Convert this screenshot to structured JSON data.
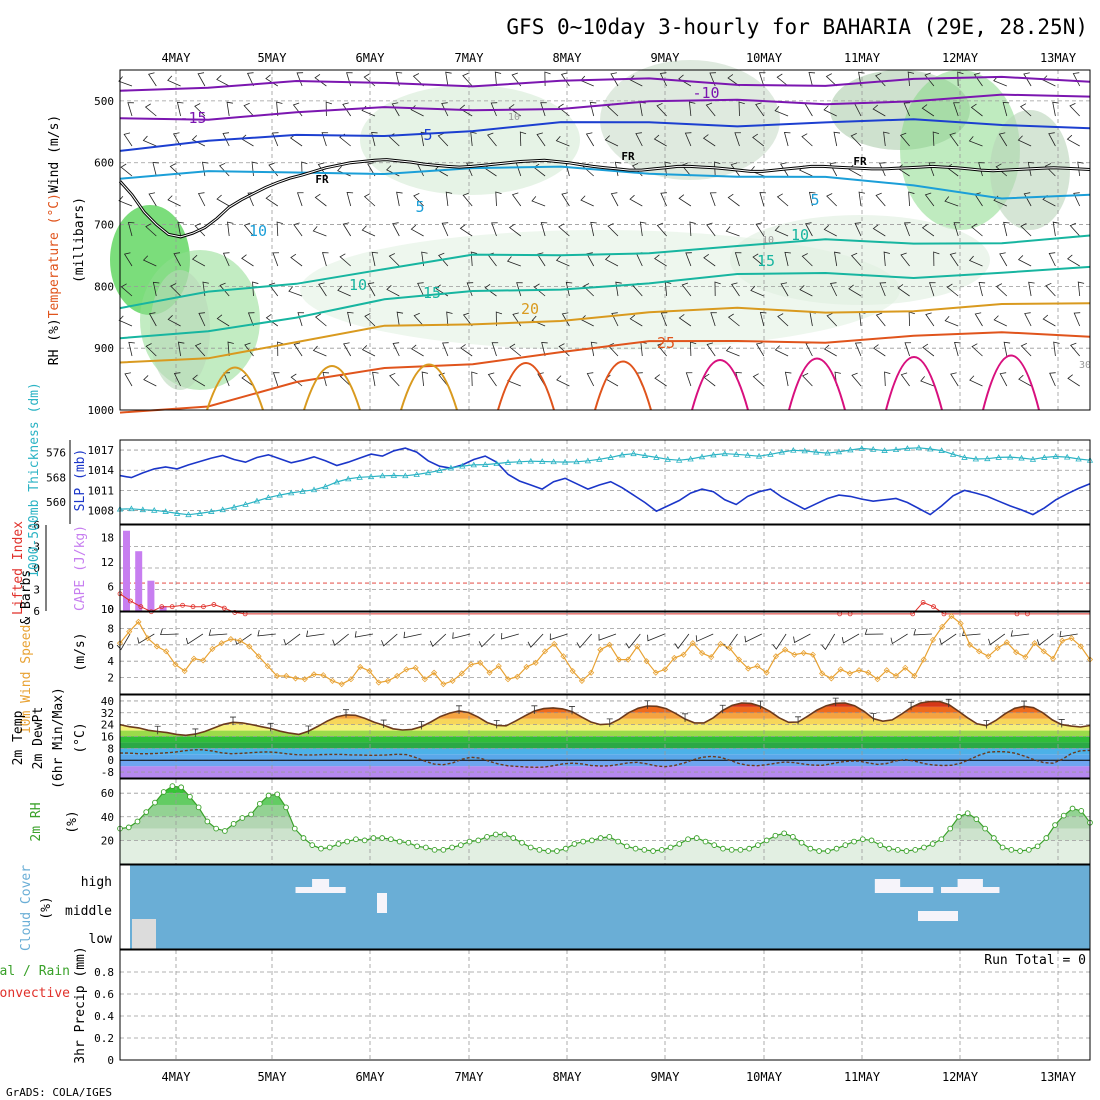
{
  "title": "GFS 0~10day 3-hourly for BAHARIA (29E, 28.25N)",
  "credit": "GrADS: COLA/IGES",
  "dates": [
    "4MAY",
    "5MAY",
    "6MAY",
    "7MAY",
    "8MAY",
    "9MAY",
    "10MAY",
    "11MAY",
    "12MAY",
    "13MAY"
  ],
  "colors": {
    "temp_cold": "#7b16b0",
    "temp_cool": "#1c3fd0",
    "temp_mild": "#1b9fd8",
    "temp_15": "#17b5a0",
    "temp_20": "#d99a1f",
    "temp_25": "#e0541c",
    "temp_hot": "#d8107e",
    "rh_fill": "#3ccf3c",
    "slp": "#1b36c9",
    "thickness": "#2bb3c4",
    "cape": "#c77ef0",
    "lifted_index": "#e0302a",
    "wind10m": "#e8a233",
    "rh2m": "#3aa12a",
    "cloud": "#6aaed6",
    "cloud_gap": "#f6f4fa"
  },
  "chart_data": [
    {
      "type": "contour-profile",
      "panel": "upper-air",
      "ylabel_parts": [
        "RH (%)",
        "Temperature (°C)",
        "Wind (m/s)"
      ],
      "ylabel_unit": "(millibars)",
      "y_ticks": [
        "500",
        "600",
        "700",
        "800",
        "900",
        "1000"
      ],
      "ylim": [
        450,
        1000
      ],
      "y_reverse": true,
      "freezing_label": "FR",
      "contour_labels": [
        "-15",
        "-10",
        "5",
        "5",
        "5",
        "10",
        "10",
        "10",
        "15",
        "15",
        "20",
        "25",
        "30",
        "10",
        "10"
      ],
      "freezing_level_mb": [
        630,
        652,
        680,
        700,
        716,
        720,
        714,
        705,
        690,
        672,
        660,
        650,
        640,
        632,
        625,
        620,
        614,
        608,
        604,
        600,
        598,
        596,
        595,
        597,
        599,
        602,
        604,
        606,
        607,
        606,
        604,
        602,
        600,
        598,
        597,
        596,
        598,
        600,
        603,
        606,
        608,
        610,
        612,
        612,
        610,
        608,
        606,
        606,
        607,
        608,
        610,
        612,
        614,
        614,
        612,
        610,
        608,
        606,
        606,
        607,
        608,
        609,
        610,
        610,
        609,
        608,
        607,
        606,
        607,
        608,
        610,
        612,
        613,
        612,
        611,
        610,
        609,
        608,
        609,
        610,
        611
      ],
      "isotherms": [
        {
          "label": "-15",
          "values": [
            528,
            524,
            520,
            516,
            512,
            508,
            505,
            502,
            500,
            498,
            496,
            494
          ]
        },
        {
          "label": "-10",
          "values": [
            478,
            476,
            474,
            472,
            470,
            468,
            470,
            472,
            470,
            468,
            466,
            464
          ]
        },
        {
          "label": "5 (upper)",
          "values": [
            575,
            568,
            560,
            552,
            545,
            540,
            537,
            535,
            534,
            536,
            538,
            538
          ]
        },
        {
          "label": "5 (lower)",
          "values": [
            625,
            620,
            615,
            612,
            611,
            612,
            614,
            618,
            628,
            640,
            652,
            650
          ]
        },
        {
          "label": "10",
          "values": [
            840,
            812,
            790,
            770,
            755,
            750,
            740,
            736,
            730,
            728,
            725,
            722
          ]
        },
        {
          "label": "15",
          "values": [
            890,
            870,
            845,
            825,
            812,
            800,
            792,
            786,
            780,
            780,
            778,
            775
          ]
        },
        {
          "label": "20",
          "values": [
            925,
            910,
            890,
            870,
            860,
            850,
            845,
            840,
            838,
            836,
            834,
            830
          ]
        },
        {
          "label": "25",
          "values": [
            1000,
            990,
            960,
            935,
            920,
            905,
            895,
            888,
            885,
            882,
            880,
            878
          ]
        }
      ]
    },
    {
      "type": "line",
      "panel": "slp-thickness",
      "ylabel_left": "1000-500mb Thickness (dm)",
      "ylabel_right": "SLP (mb)",
      "left_ticks": [
        "576",
        "568",
        "560"
      ],
      "right_ticks": [
        "1017",
        "1014",
        "1011",
        "1008"
      ],
      "series": [
        {
          "key": "slp",
          "values": [
            1013.2,
            1012.9,
            1013.6,
            1014.2,
            1014.5,
            1014.2,
            1014.8,
            1015.3,
            1015.8,
            1016.2,
            1015.6,
            1015.2,
            1015.9,
            1016.3,
            1015.7,
            1015.1,
            1015.5,
            1016.0,
            1015.4,
            1014.7,
            1015.2,
            1015.8,
            1016.4,
            1016.1,
            1016.9,
            1017.3,
            1016.7,
            1015.4,
            1014.6,
            1014.3,
            1014.8,
            1015.6,
            1016.1,
            1015.2,
            1013.4,
            1012.4,
            1011.8,
            1011.2,
            1012.3,
            1012.8,
            1012.0,
            1011.2,
            1011.8,
            1012.3,
            1011.4,
            1010.3,
            1009.2,
            1007.9,
            1008.7,
            1009.5,
            1010.6,
            1011.2,
            1010.8,
            1009.6,
            1008.9,
            1010.1,
            1010.8,
            1011.2,
            1010.0,
            1009.1,
            1008.2,
            1009.0,
            1009.8,
            1010.3,
            1010.1,
            1009.7,
            1009.4,
            1009.6,
            1009.8,
            1009.2,
            1008.3,
            1007.4,
            1008.7,
            1010.2,
            1011.0,
            1010.6,
            1010.1,
            1009.4,
            1008.7,
            1008.1,
            1007.4,
            1008.4,
            1009.6,
            1010.5,
            1011.3,
            1012.0
          ]
        },
        {
          "key": "thickness",
          "values": [
            557.8,
            557.9,
            557.6,
            557.4,
            557.0,
            556.4,
            556.0,
            556.4,
            557.0,
            557.6,
            558.4,
            559.3,
            560.4,
            561.5,
            562.3,
            563.0,
            563.5,
            564.0,
            565.0,
            566.5,
            567.5,
            568.0,
            568.2,
            568.5,
            568.6,
            568.5,
            568.9,
            569.5,
            570.2,
            571.0,
            571.6,
            572.0,
            572.1,
            572.4,
            572.8,
            573.0,
            573.2,
            573.1,
            573.0,
            572.9,
            573.0,
            573.3,
            573.8,
            574.4,
            575.2,
            575.6,
            575.0,
            574.4,
            573.8,
            573.5,
            573.9,
            574.6,
            575.2,
            575.6,
            575.4,
            575.1,
            574.8,
            575.4,
            576.1,
            576.7,
            576.5,
            576.1,
            575.8,
            576.2,
            576.8,
            577.3,
            577.0,
            576.6,
            576.9,
            577.3,
            577.5,
            577.1,
            576.6,
            575.4,
            574.4,
            573.9,
            574.0,
            574.4,
            574.5,
            574.2,
            573.8,
            574.4,
            574.7,
            574.5,
            573.9,
            573.5
          ]
        }
      ]
    },
    {
      "type": "bar",
      "panel": "cape-li",
      "ylabel_left": "Lifted Index",
      "ylabel_right": "CAPE (J/kg)",
      "li_ticks": [
        "-6",
        "-3",
        "0",
        "3",
        "6"
      ],
      "cape_ticks": [
        "18",
        "12",
        "6",
        "0",
        "10"
      ],
      "cape_values": [
        19.6,
        14.6,
        7.4,
        1.2
      ],
      "li_values": [
        3.6,
        4.6,
        5.4,
        6.1,
        5.4,
        5.4,
        5.2,
        5.4,
        5.4,
        5.1,
        5.6,
        6.2,
        7.2,
        8.2,
        9.5,
        11.0,
        11.0,
        11.0,
        11.0,
        11.0,
        11.0,
        11.0,
        11.0,
        11.0,
        11.0,
        11.0,
        11.0,
        11.0,
        11.0,
        11.0,
        11.0,
        11.0,
        11.0,
        11.0,
        11.0,
        11.0,
        11.0,
        11.0,
        11.0,
        11.0,
        11.0,
        11.0,
        11.0,
        11.0,
        11.0,
        11.0,
        11.0,
        11.0,
        11.0,
        11.0,
        11.0,
        11.0,
        11.0,
        11.0,
        11.0,
        11.0,
        11.0,
        11.0,
        11.0,
        11.0,
        11.0,
        11.0,
        11.0,
        11.0,
        11.0,
        11.0,
        11.0,
        11.0,
        11.0,
        7.4,
        7.4,
        11.0,
        11.0,
        11.0,
        11.0,
        9.0,
        6.6,
        4.8,
        5.4,
        7.8,
        11.0,
        11.0,
        11.0,
        11.0,
        11.0,
        8.4,
        6.4,
        7.8,
        11.0,
        11.0,
        11.0,
        11.0,
        11.0,
        11.0
      ]
    },
    {
      "type": "line",
      "panel": "wind-10m",
      "ylabel": "10m Wind Speed (m/s) & Barbs",
      "ylabel_color_part": "10m Wind Speed",
      "ylabel_black_part": "& Barbs",
      "ylabel_unit": "(m/s)",
      "y_ticks": [
        "8",
        "6",
        "4",
        "2"
      ],
      "ylim": [
        0,
        10
      ],
      "values": [
        6.2,
        7.6,
        8.8,
        6.8,
        5.8,
        5.2,
        3.6,
        2.8,
        4.3,
        4.1,
        5.5,
        6.2,
        6.7,
        6.5,
        5.8,
        4.6,
        3.4,
        2.2,
        2.2,
        1.9,
        1.8,
        2.4,
        2.3,
        1.6,
        1.2,
        1.8,
        3.3,
        2.8,
        1.4,
        1.6,
        2.2,
        3.0,
        3.2,
        1.8,
        2.6,
        1.2,
        1.6,
        2.5,
        3.6,
        3.8,
        2.6,
        3.4,
        1.8,
        2.1,
        3.3,
        3.8,
        5.2,
        6.1,
        4.6,
        2.8,
        1.6,
        2.6,
        5.4,
        6.0,
        4.2,
        4.2,
        5.8,
        4.0,
        2.6,
        3.0,
        4.4,
        4.8,
        6.2,
        5.0,
        4.5,
        6.1,
        5.6,
        4.2,
        3.1,
        3.4,
        2.6,
        4.6,
        5.4,
        4.8,
        5.0,
        4.8,
        2.5,
        1.9,
        3.0,
        2.5,
        2.9,
        2.6,
        1.8,
        2.9,
        2.2,
        3.2,
        2.2,
        4.2,
        6.6,
        8.2,
        9.5,
        8.6,
        6.0,
        5.2,
        4.6,
        5.6,
        6.3,
        5.1,
        4.5,
        6.2,
        5.2,
        4.3,
        6.5,
        6.8,
        5.8,
        4.2
      ]
    },
    {
      "type": "area",
      "panel": "temp-2m",
      "ylabel_parts": [
        "2m Temp",
        "2m DewPt",
        "(6hr Min/Max)"
      ],
      "ylabel_unit": "(°C)",
      "y_ticks": [
        "40",
        "32",
        "24",
        "16",
        "8",
        "0",
        "-8"
      ],
      "ylim": [
        -12,
        44
      ],
      "temperature": [
        24.0,
        22.6,
        21.8,
        20.2,
        19.4,
        18.6,
        17.4,
        16.8,
        17.6,
        19.4,
        21.8,
        24.2,
        25.6,
        25.2,
        24.0,
        22.6,
        21.4,
        19.6,
        18.3,
        17.4,
        19.6,
        22.8,
        26.4,
        29.2,
        30.6,
        30.3,
        28.2,
        25.6,
        23.6,
        21.2,
        20.4,
        20.8,
        22.6,
        25.8,
        29.4,
        31.8,
        33.2,
        32.2,
        29.2,
        25.4,
        23.4,
        23.2,
        26.4,
        30.0,
        33.2,
        34.8,
        35.3,
        34.6,
        32.8,
        29.2,
        25.8,
        24.0,
        24.4,
        27.6,
        32.0,
        35.0,
        36.6,
        36.4,
        34.8,
        31.6,
        27.8,
        25.2,
        25.2,
        28.6,
        33.6,
        37.0,
        38.6,
        38.3,
        36.4,
        33.0,
        28.6,
        25.6,
        25.8,
        29.6,
        33.8,
        36.8,
        38.4,
        38.6,
        36.8,
        33.0,
        28.0,
        26.3,
        27.2,
        31.2,
        35.6,
        38.6,
        39.6,
        39.6,
        37.6,
        33.2,
        28.6,
        24.6,
        23.3,
        26.8,
        31.4,
        35.0,
        36.4,
        35.4,
        32.0,
        27.2,
        24.0,
        23.0,
        22.4,
        23.4
      ],
      "dewpoint": [
        4.8,
        4.8,
        4.4,
        4.4,
        4.6,
        5.0,
        5.5,
        6.4,
        7.0,
        7.0,
        6.2,
        5.0,
        4.4,
        4.6,
        5.0,
        5.4,
        5.6,
        5.2,
        4.4,
        3.8,
        3.6,
        3.6,
        3.8,
        3.9,
        3.9,
        3.6,
        3.5,
        3.3,
        3.4,
        3.6,
        4.0,
        3.8,
        1.8,
        -0.6,
        -2.6,
        -3.0,
        -1.8,
        0.6,
        2.0,
        1.4,
        -0.8,
        -2.6,
        -3.8,
        -4.2,
        -4.6,
        -4.8,
        -4.6,
        -3.6,
        -2.4,
        -2.0,
        -2.5,
        -3.6,
        -3.9,
        -3.8,
        -2.8,
        -1.8,
        -1.4,
        -2.4,
        -3.8,
        -4.4,
        -3.6,
        -2.0,
        0.2,
        2.0,
        2.6,
        2.0,
        0.0,
        -2.2,
        -3.4,
        -3.7,
        -3.0,
        -2.0,
        -1.2,
        -1.6,
        -2.6,
        -3.3,
        -3.4,
        -2.4,
        -1.2,
        -0.6,
        -0.6,
        -1.8,
        -2.8,
        -2.2,
        -0.4,
        0.4,
        -0.6,
        -2.2,
        -3.2,
        -3.6,
        -3.4,
        -2.0,
        0.6,
        3.4,
        5.4,
        5.8,
        5.6,
        4.6,
        2.6,
        0.2,
        -1.6,
        -2.0,
        0.6,
        4.6,
        6.4,
        6.6
      ]
    },
    {
      "type": "area",
      "panel": "rh-2m",
      "ylabel": "2m RH",
      "ylabel_unit": "(%)",
      "y_ticks": [
        "60",
        "40",
        "20"
      ],
      "ylim": [
        0,
        72
      ],
      "values": [
        30,
        31,
        36,
        44,
        52,
        61,
        66,
        65,
        57,
        48,
        36,
        30,
        28,
        34,
        39,
        42,
        51,
        58,
        59,
        48,
        30,
        22,
        16,
        13,
        14,
        17,
        19,
        21,
        20,
        22,
        22,
        21,
        19,
        18,
        15,
        14,
        12,
        12,
        14,
        16,
        19,
        20,
        23,
        25,
        25,
        22,
        18,
        14,
        12,
        11,
        11,
        13,
        17,
        19,
        20,
        22,
        23,
        19,
        15,
        13,
        12,
        11,
        12,
        14,
        17,
        21,
        22,
        19,
        16,
        13,
        12,
        12,
        13,
        16,
        20,
        24,
        26,
        23,
        18,
        13,
        11,
        11,
        13,
        16,
        19,
        21,
        20,
        16,
        13,
        12,
        11,
        12,
        14,
        17,
        21,
        30,
        40,
        43,
        38,
        30,
        22,
        14,
        12,
        11,
        12,
        15,
        22,
        33,
        41,
        47,
        45,
        35
      ]
    },
    {
      "type": "heatmap",
      "panel": "cloud-cover",
      "ylabel": "Cloud Cover",
      "ylabel_unit": "(%)",
      "levels": [
        "high",
        "middle",
        "low"
      ],
      "high_clear": [
        0,
        0,
        0,
        0,
        0,
        0,
        0,
        0,
        0,
        0,
        0,
        0,
        0,
        0,
        0,
        0,
        0,
        0,
        0,
        0,
        1,
        1,
        2,
        2,
        1,
        1,
        0,
        0,
        0,
        0,
        0,
        0,
        0,
        0,
        0,
        0,
        0,
        0,
        0,
        0,
        0,
        0,
        0,
        0,
        0,
        0,
        0,
        0,
        0,
        0,
        0,
        0,
        0,
        0,
        0,
        0,
        0,
        0,
        0,
        0,
        0,
        0,
        0,
        0,
        0,
        0,
        0,
        0,
        0,
        0,
        0,
        0,
        0,
        0,
        0,
        0,
        0,
        0,
        0,
        0,
        0,
        0,
        0,
        0,
        0,
        0,
        0,
        0,
        0,
        0,
        2,
        2,
        2,
        1,
        1,
        1,
        1,
        0,
        1,
        1,
        2,
        2,
        2,
        1,
        1,
        0,
        0,
        0,
        0,
        0,
        0,
        0,
        0,
        0,
        0,
        0
      ],
      "low_clear_prefix": 3
    },
    {
      "type": "line",
      "panel": "precip",
      "ylabel_parts": [
        "Total / Rain",
        "Convective"
      ],
      "ylabel_unit": "3hr Precip (mm)",
      "y_ticks": [
        "0.8",
        "0.6",
        "0.4",
        "0.2",
        "0"
      ],
      "ylim": [
        0,
        1
      ],
      "run_total_label": "Run Total = 0",
      "values": []
    }
  ]
}
